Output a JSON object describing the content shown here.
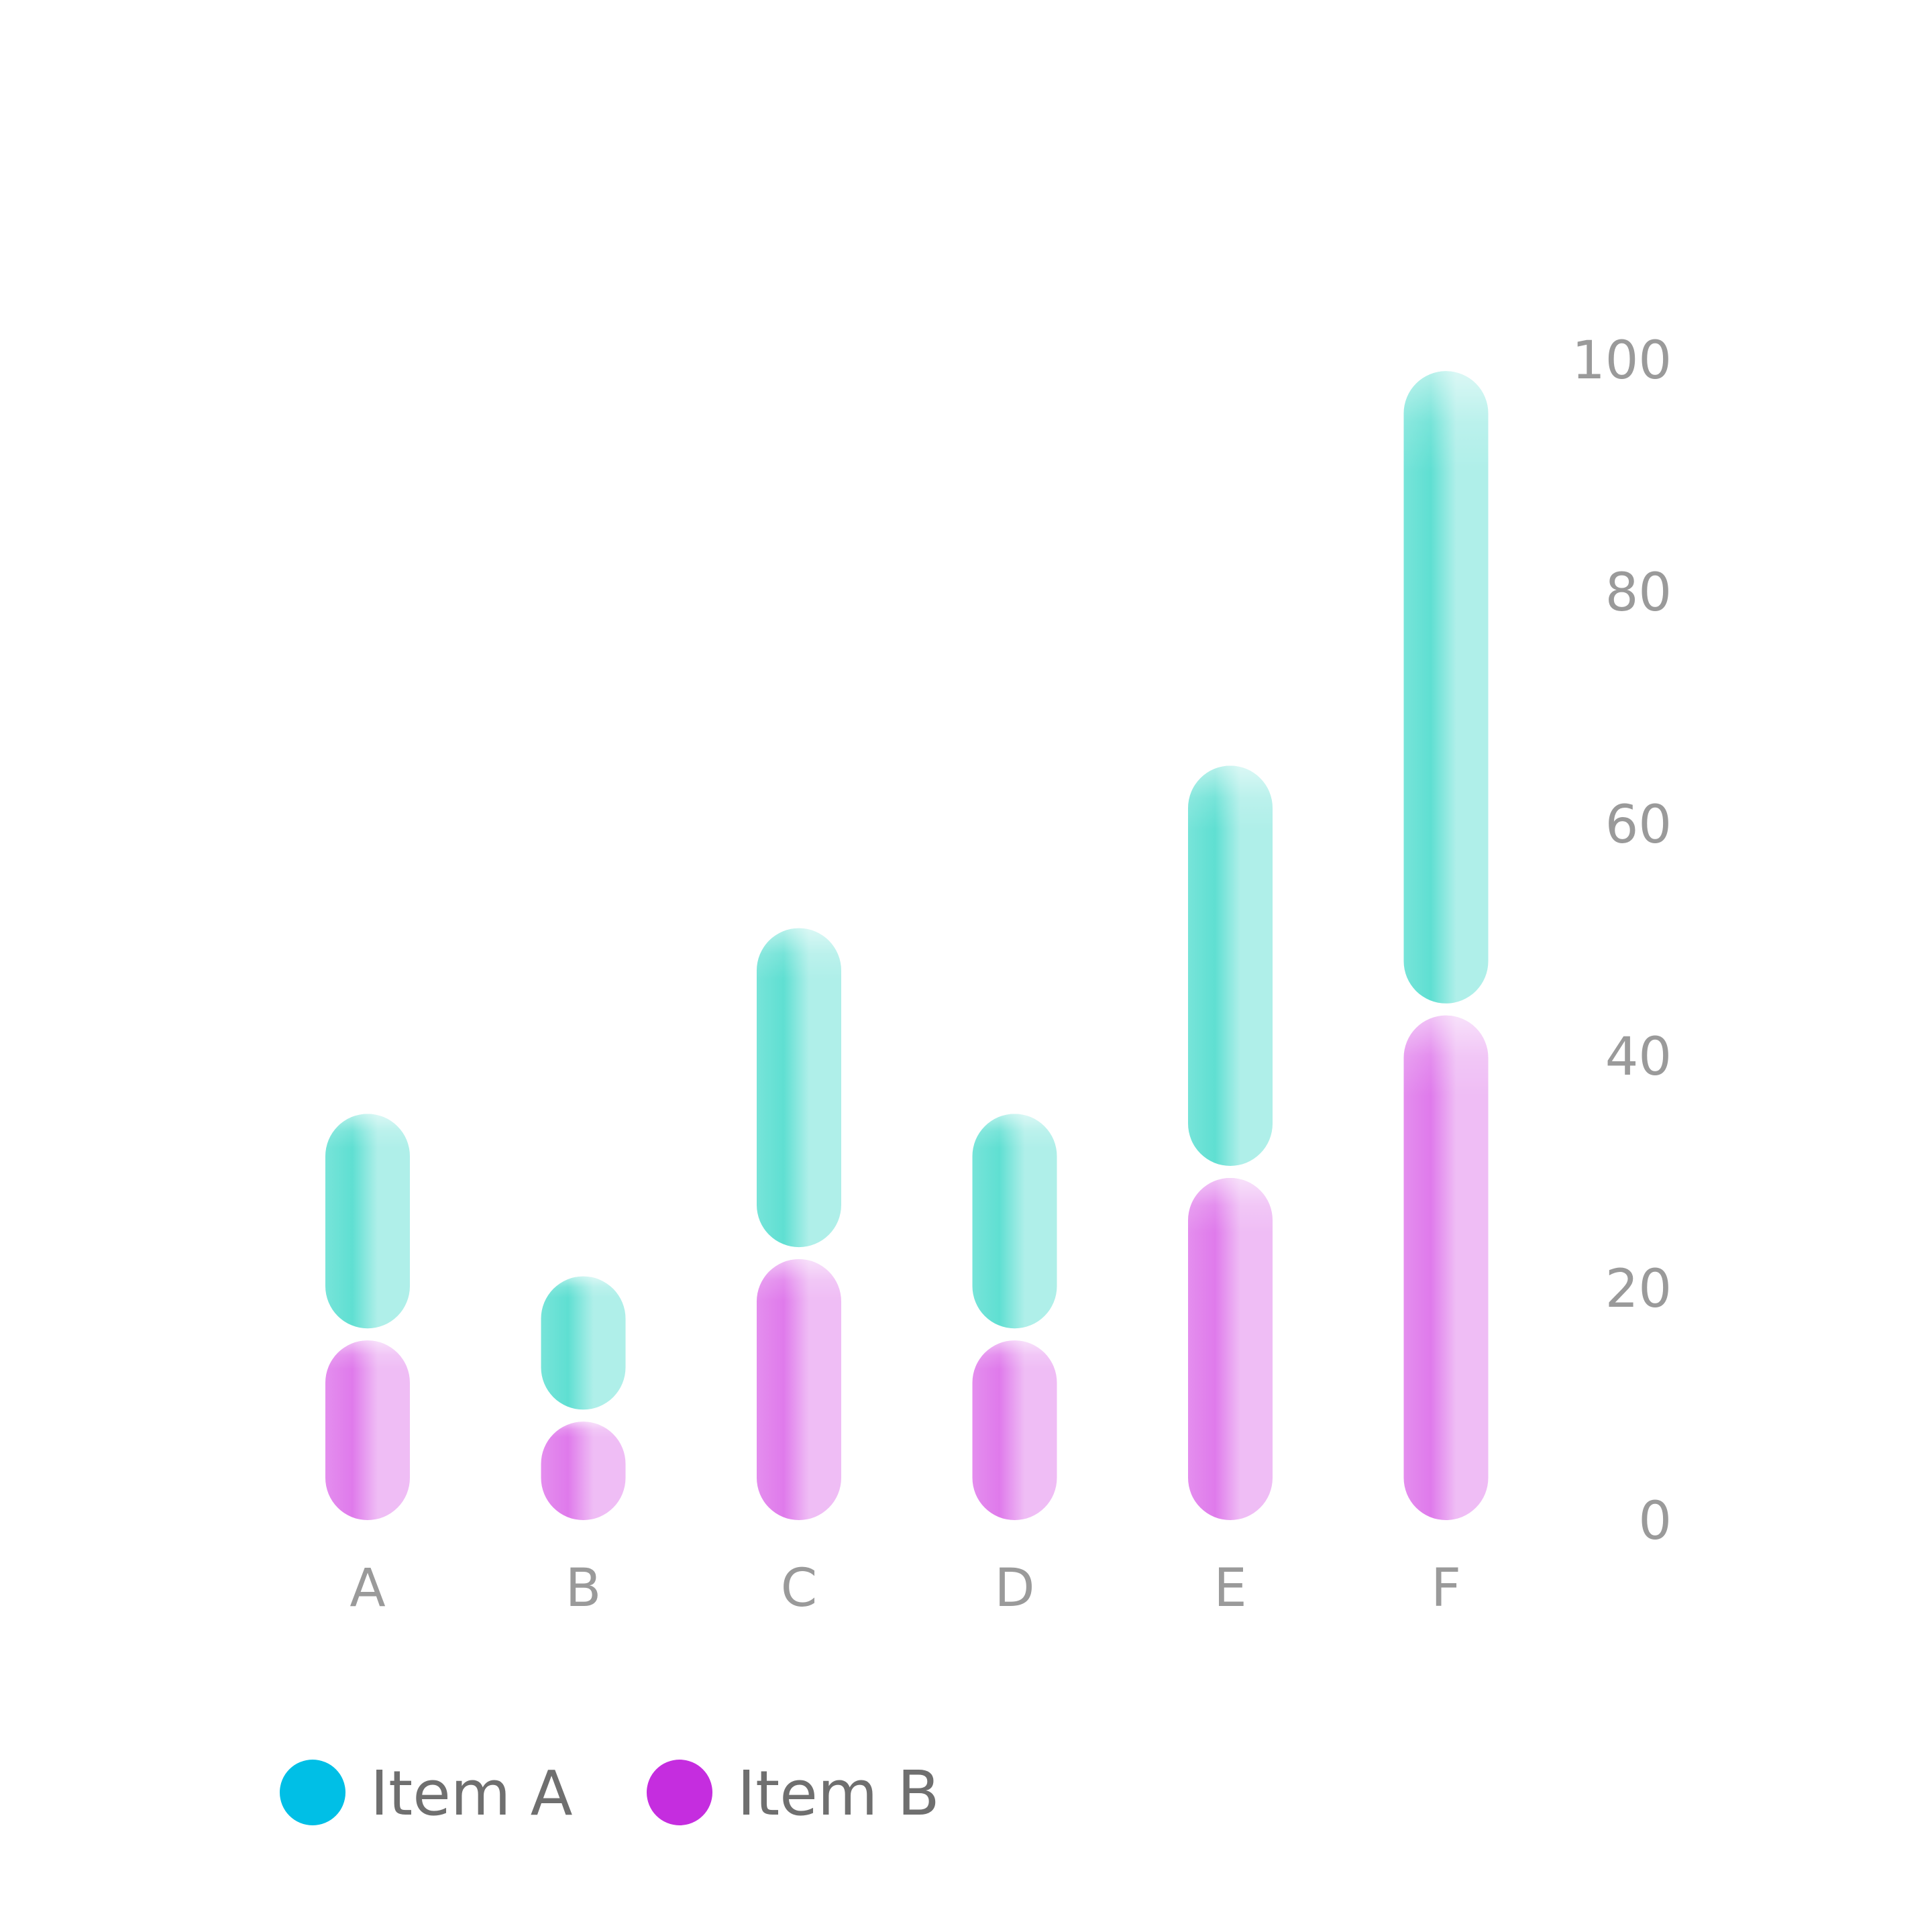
{
  "chart_data": {
    "type": "bar",
    "stacked": true,
    "orientation": "vertical",
    "categories": [
      "A",
      "B",
      "C",
      "D",
      "E",
      "F"
    ],
    "series": [
      {
        "name": "Item B",
        "values": [
          16,
          9,
          23,
          16,
          30,
          44
        ],
        "color": "#c52ddf",
        "bar_color": "#df7aeb"
      },
      {
        "name": "Item A",
        "values": [
          19,
          12,
          28,
          19,
          35,
          55
        ],
        "color": "#00bfe6",
        "bar_color": "#5fdfd2"
      }
    ],
    "y_axis": {
      "position": "right",
      "range": [
        0,
        100
      ],
      "ticks": [
        "0",
        "20",
        "40",
        "60",
        "80",
        "100"
      ]
    },
    "grid": false,
    "legend": {
      "placement": "bottom-left",
      "items": [
        "Item A",
        "Item B"
      ],
      "colors": [
        "#00bfe6",
        "#c52ddf"
      ]
    },
    "title": "",
    "xlabel": "",
    "ylabel": ""
  }
}
